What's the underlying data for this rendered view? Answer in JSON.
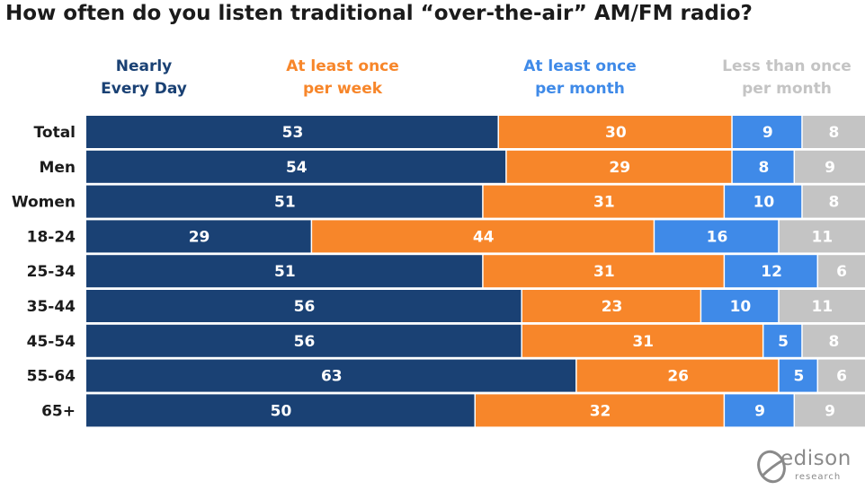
{
  "colors": {
    "nearly_every_day": "#1a4174",
    "at_least_once_per_week": "#f7862a",
    "at_least_once_per_month": "#3f8ae8",
    "less_than_once_per_month": "#c4c4c4"
  },
  "chart_data": {
    "type": "bar",
    "orientation": "horizontal",
    "stacked": true,
    "normalized": true,
    "title": "How often do you listen traditional “over-the-air” AM/FM radio?",
    "categories": [
      "Total",
      "Men",
      "Women",
      "18-24",
      "25-34",
      "35-44",
      "45-54",
      "55-64",
      "65+"
    ],
    "series": [
      {
        "name": "Nearly\nEvery Day",
        "color": "#1a4174",
        "values": [
          53,
          54,
          51,
          29,
          51,
          56,
          56,
          63,
          50
        ]
      },
      {
        "name": "At least once\nper week",
        "color": "#f7862a",
        "values": [
          30,
          29,
          31,
          44,
          31,
          23,
          31,
          26,
          32
        ]
      },
      {
        "name": "At least once\nper month",
        "color": "#3f8ae8",
        "values": [
          9,
          8,
          10,
          16,
          12,
          10,
          5,
          5,
          9
        ]
      },
      {
        "name": "Less than once\nper month",
        "color": "#c4c4c4",
        "values": [
          8,
          9,
          8,
          11,
          6,
          11,
          8,
          6,
          9
        ]
      }
    ],
    "legend_position": "top",
    "grid": false
  },
  "logo": {
    "word": "edison",
    "sub": "research"
  }
}
